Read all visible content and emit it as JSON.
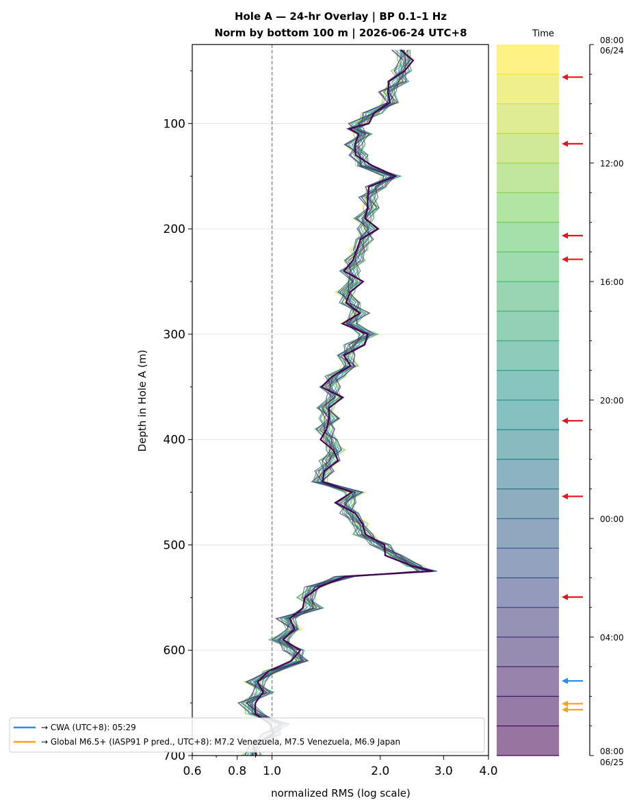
{
  "chart_data": [
    {
      "type": "line",
      "title": "Hole A — 24-hr Overlay  |  BP 0.1–1 Hz",
      "subtitle": "Norm by bottom 100 m  |  2026-06-24 UTC+8",
      "xlabel": "normalized RMS  (log scale)",
      "ylabel": "Depth in Hole A (m)",
      "x_scale": "log",
      "xlim": [
        0.6,
        4.0
      ],
      "ylim": [
        700,
        25
      ],
      "y_inverted": true,
      "x_ticks": [
        "0.6",
        "0.8",
        "1.0",
        "2.0",
        "3.0",
        "4.0"
      ],
      "x_tick_values": [
        0.6,
        0.8,
        1.0,
        2.0,
        3.0,
        4.0
      ],
      "y_ticks": [
        "100",
        "200",
        "300",
        "400",
        "500",
        "600",
        "700"
      ],
      "y_tick_values": [
        100,
        200,
        300,
        400,
        500,
        600,
        700
      ],
      "reference_line_x": 1.0,
      "grid": "horizontal",
      "series_count": 24,
      "colormap": "viridis (dark purple = latest, yellow = earliest)",
      "profile": {
        "depth": [
          30,
          40,
          50,
          60,
          70,
          80,
          90,
          100,
          105,
          110,
          120,
          130,
          140,
          150,
          160,
          170,
          180,
          190,
          200,
          210,
          220,
          230,
          240,
          250,
          260,
          270,
          280,
          290,
          300,
          310,
          320,
          330,
          340,
          350,
          360,
          370,
          380,
          390,
          400,
          410,
          420,
          430,
          440,
          450,
          460,
          470,
          480,
          490,
          500,
          510,
          520,
          525,
          530,
          540,
          550,
          560,
          570,
          580,
          590,
          600,
          610,
          620,
          630,
          640,
          650,
          660,
          670,
          680,
          690,
          700
        ],
        "rms": [
          2.3,
          2.35,
          2.3,
          2.25,
          2.1,
          2.15,
          1.9,
          1.75,
          1.7,
          1.8,
          1.7,
          1.75,
          1.8,
          2.15,
          1.95,
          1.85,
          1.9,
          1.8,
          1.85,
          1.8,
          1.75,
          1.7,
          1.65,
          1.7,
          1.6,
          1.65,
          1.75,
          1.65,
          1.85,
          1.7,
          1.6,
          1.65,
          1.5,
          1.45,
          1.5,
          1.4,
          1.45,
          1.4,
          1.45,
          1.5,
          1.45,
          1.4,
          1.35,
          1.7,
          1.6,
          1.65,
          1.75,
          1.8,
          2.0,
          2.2,
          2.5,
          2.7,
          1.6,
          1.3,
          1.25,
          1.3,
          1.1,
          1.15,
          1.05,
          1.15,
          1.2,
          1.0,
          0.9,
          0.95,
          0.85,
          0.9,
          1.05,
          1.0,
          0.9,
          0.88
        ]
      }
    },
    {
      "type": "timeline",
      "title": "Time",
      "time_range": [
        "08:00 06/24",
        "08:00 06/25"
      ],
      "hours": 24,
      "tick_labels": [
        {
          "line1": "08:00",
          "line2": "06/24",
          "hour": 0
        },
        {
          "line1": "12:00",
          "line2": "",
          "hour": 4
        },
        {
          "line1": "16:00",
          "line2": "",
          "hour": 8
        },
        {
          "line1": "20:00",
          "line2": "",
          "hour": 12
        },
        {
          "line1": "00:00",
          "line2": "",
          "hour": 16
        },
        {
          "line1": "04:00",
          "line2": "",
          "hour": 20
        },
        {
          "line1": "08:00",
          "line2": "06/25",
          "hour": 24
        }
      ],
      "event_markers": [
        {
          "hour": 1.1,
          "color": "#e8141b"
        },
        {
          "hour": 3.35,
          "color": "#e8141b"
        },
        {
          "hour": 6.45,
          "color": "#e8141b"
        },
        {
          "hour": 7.25,
          "color": "#e8141b"
        },
        {
          "hour": 12.7,
          "color": "#e8141b"
        },
        {
          "hour": 15.25,
          "color": "#e8141b"
        },
        {
          "hour": 18.65,
          "color": "#e8141b"
        },
        {
          "hour": 21.48,
          "color": "#1e8ef0"
        },
        {
          "hour": 22.25,
          "color": "#ffa20f"
        },
        {
          "hour": 22.45,
          "color": "#ffa20f"
        }
      ]
    }
  ],
  "legend": {
    "entries": [
      {
        "label": "→ CWA (UTC+8): 05:29",
        "color": "#1e8ef0"
      },
      {
        "label": "→ Global M6.5+ (IASP91 P pred., UTC+8): M7.2 Venezuela, M7.5 Venezuela, M6.9 Japan",
        "color": "#ffa20f"
      }
    ]
  }
}
